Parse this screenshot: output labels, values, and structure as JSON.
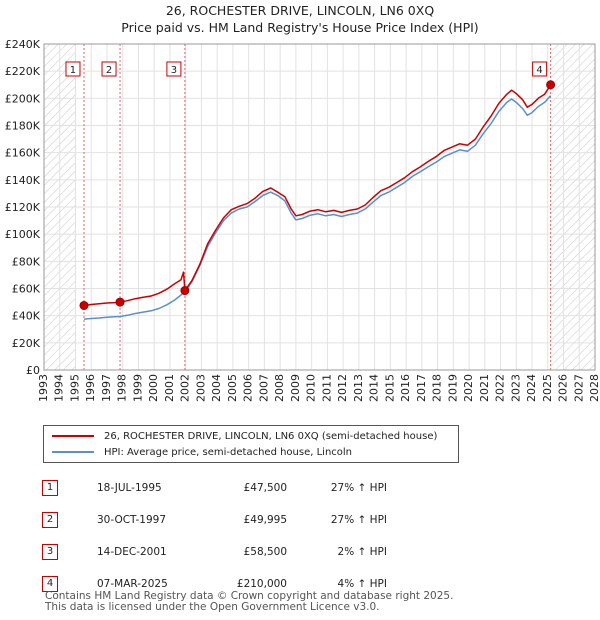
{
  "chart_data": {
    "type": "line",
    "title": "26, ROCHESTER DRIVE, LINCOLN, LN6 0XQ",
    "subtitle": "Price paid vs. HM Land Registry's House Price Index (HPI)",
    "xlim": [
      1993,
      2028
    ],
    "ylim": [
      0,
      240000
    ],
    "x_ticks": [
      "1993",
      "1994",
      "1995",
      "1996",
      "1997",
      "1998",
      "1999",
      "2000",
      "2001",
      "2002",
      "2003",
      "2004",
      "2005",
      "2006",
      "2007",
      "2008",
      "2009",
      "2010",
      "2011",
      "2012",
      "2013",
      "2014",
      "2015",
      "2016",
      "2017",
      "2018",
      "2019",
      "2020",
      "2021",
      "2022",
      "2023",
      "2024",
      "2025",
      "2026",
      "2027",
      "2028"
    ],
    "y_ticks": [
      {
        "value": 0,
        "label": "£0"
      },
      {
        "value": 20000,
        "label": "£20K"
      },
      {
        "value": 40000,
        "label": "£40K"
      },
      {
        "value": 60000,
        "label": "£60K"
      },
      {
        "value": 80000,
        "label": "£80K"
      },
      {
        "value": 100000,
        "label": "£100K"
      },
      {
        "value": 120000,
        "label": "£120K"
      },
      {
        "value": 140000,
        "label": "£140K"
      },
      {
        "value": 160000,
        "label": "£160K"
      },
      {
        "value": 180000,
        "label": "£180K"
      },
      {
        "value": 200000,
        "label": "£200K"
      },
      {
        "value": 220000,
        "label": "£220K"
      },
      {
        "value": 240000,
        "label": "£240K"
      }
    ],
    "hatched_before": 1995.0,
    "hatched_after": 2025.2,
    "series": [
      {
        "name": "26, ROCHESTER DRIVE, LINCOLN, LN6 0XQ (semi-detached house)",
        "color": "#cc0000",
        "points": [
          [
            1995.54,
            47500
          ],
          [
            1996.0,
            48200
          ],
          [
            1996.5,
            48800
          ],
          [
            1997.0,
            49300
          ],
          [
            1997.5,
            49600
          ],
          [
            1997.83,
            49995
          ],
          [
            1998.3,
            51000
          ],
          [
            1998.8,
            52500
          ],
          [
            1999.3,
            53500
          ],
          [
            1999.8,
            54500
          ],
          [
            2000.3,
            56500
          ],
          [
            2000.8,
            59500
          ],
          [
            2001.3,
            63500
          ],
          [
            2001.7,
            66500
          ],
          [
            2001.86,
            72000
          ],
          [
            2001.95,
            58500
          ],
          [
            2002.4,
            66000
          ],
          [
            2002.9,
            78000
          ],
          [
            2003.4,
            93000
          ],
          [
            2003.9,
            103000
          ],
          [
            2004.4,
            112000
          ],
          [
            2004.9,
            118000
          ],
          [
            2005.4,
            120500
          ],
          [
            2005.9,
            122500
          ],
          [
            2006.4,
            126500
          ],
          [
            2006.9,
            131500
          ],
          [
            2007.4,
            134000
          ],
          [
            2007.9,
            130500
          ],
          [
            2008.3,
            127500
          ],
          [
            2008.7,
            118500
          ],
          [
            2009.0,
            113500
          ],
          [
            2009.4,
            114500
          ],
          [
            2009.9,
            117000
          ],
          [
            2010.4,
            118000
          ],
          [
            2010.9,
            116500
          ],
          [
            2011.4,
            117500
          ],
          [
            2011.9,
            116000
          ],
          [
            2012.4,
            117500
          ],
          [
            2012.9,
            118500
          ],
          [
            2013.4,
            121500
          ],
          [
            2013.9,
            127000
          ],
          [
            2014.4,
            132000
          ],
          [
            2014.9,
            134500
          ],
          [
            2015.4,
            138000
          ],
          [
            2015.9,
            141500
          ],
          [
            2016.4,
            146000
          ],
          [
            2016.9,
            149500
          ],
          [
            2017.4,
            153500
          ],
          [
            2017.9,
            157000
          ],
          [
            2018.4,
            161500
          ],
          [
            2018.9,
            164000
          ],
          [
            2019.4,
            166500
          ],
          [
            2019.9,
            165500
          ],
          [
            2020.4,
            170000
          ],
          [
            2020.9,
            179000
          ],
          [
            2021.4,
            187000
          ],
          [
            2021.9,
            196500
          ],
          [
            2022.4,
            203000
          ],
          [
            2022.7,
            206000
          ],
          [
            2023.0,
            203500
          ],
          [
            2023.4,
            199000
          ],
          [
            2023.7,
            193500
          ],
          [
            2024.0,
            195500
          ],
          [
            2024.4,
            200000
          ],
          [
            2024.8,
            203000
          ],
          [
            2025.18,
            210000
          ]
        ]
      },
      {
        "name": "HPI: Average price, semi-detached house, Lincoln",
        "color": "#5b8fd0",
        "points": [
          [
            1995.54,
            37500
          ],
          [
            1996.0,
            37900
          ],
          [
            1996.5,
            38300
          ],
          [
            1997.0,
            38800
          ],
          [
            1997.5,
            39200
          ],
          [
            1997.83,
            39400
          ],
          [
            1998.3,
            40300
          ],
          [
            1998.8,
            41600
          ],
          [
            1999.3,
            42600
          ],
          [
            1999.8,
            43600
          ],
          [
            2000.3,
            45300
          ],
          [
            2000.8,
            48000
          ],
          [
            2001.3,
            51500
          ],
          [
            2001.95,
            57500
          ],
          [
            2002.4,
            65000
          ],
          [
            2002.9,
            77000
          ],
          [
            2003.4,
            91000
          ],
          [
            2003.9,
            101000
          ],
          [
            2004.4,
            110000
          ],
          [
            2004.9,
            115500
          ],
          [
            2005.4,
            118500
          ],
          [
            2005.9,
            120000
          ],
          [
            2006.4,
            124000
          ],
          [
            2006.9,
            128500
          ],
          [
            2007.4,
            131000
          ],
          [
            2007.9,
            128000
          ],
          [
            2008.3,
            124500
          ],
          [
            2008.7,
            115500
          ],
          [
            2009.0,
            110500
          ],
          [
            2009.4,
            111500
          ],
          [
            2009.9,
            114000
          ],
          [
            2010.4,
            115000
          ],
          [
            2010.9,
            113500
          ],
          [
            2011.4,
            114500
          ],
          [
            2011.9,
            113000
          ],
          [
            2012.4,
            114500
          ],
          [
            2012.9,
            115500
          ],
          [
            2013.4,
            118500
          ],
          [
            2013.9,
            123500
          ],
          [
            2014.4,
            128500
          ],
          [
            2014.9,
            131000
          ],
          [
            2015.4,
            134500
          ],
          [
            2015.9,
            138000
          ],
          [
            2016.4,
            142500
          ],
          [
            2016.9,
            146000
          ],
          [
            2017.4,
            149500
          ],
          [
            2017.9,
            153000
          ],
          [
            2018.4,
            157000
          ],
          [
            2018.9,
            159500
          ],
          [
            2019.4,
            162000
          ],
          [
            2019.9,
            161000
          ],
          [
            2020.4,
            165500
          ],
          [
            2020.9,
            174000
          ],
          [
            2021.4,
            181500
          ],
          [
            2021.9,
            190500
          ],
          [
            2022.4,
            197000
          ],
          [
            2022.7,
            199500
          ],
          [
            2023.0,
            197000
          ],
          [
            2023.4,
            192500
          ],
          [
            2023.7,
            187500
          ],
          [
            2024.0,
            189500
          ],
          [
            2024.4,
            194000
          ],
          [
            2024.8,
            197000
          ],
          [
            2025.18,
            202000
          ]
        ]
      }
    ],
    "sale_markers": [
      {
        "label": "1",
        "x": 1995.54,
        "y": 47500
      },
      {
        "label": "2",
        "x": 1997.83,
        "y": 49995
      },
      {
        "label": "3",
        "x": 2001.95,
        "y": 58500
      },
      {
        "label": "4",
        "x": 2025.18,
        "y": 210000
      }
    ]
  },
  "legend": {
    "items": [
      {
        "label": "26, ROCHESTER DRIVE, LINCOLN, LN6 0XQ (semi-detached house)",
        "color": "#cc0000"
      },
      {
        "label": "HPI: Average price, semi-detached house, Lincoln",
        "color": "#5b8fd0"
      }
    ]
  },
  "sales": [
    {
      "num": "1",
      "date": "18-JUL-1995",
      "price": "£47,500",
      "hpi": "27% ↑ HPI"
    },
    {
      "num": "2",
      "date": "30-OCT-1997",
      "price": "£49,995",
      "hpi": "27% ↑ HPI"
    },
    {
      "num": "3",
      "date": "14-DEC-2001",
      "price": "£58,500",
      "hpi": "2% ↑ HPI"
    },
    {
      "num": "4",
      "date": "07-MAR-2025",
      "price": "£210,000",
      "hpi": "4% ↑ HPI"
    }
  ],
  "footer": {
    "line1": "Contains HM Land Registry data © Crown copyright and database right 2025.",
    "line2": "This data is licensed under the Open Government Licence v3.0."
  }
}
